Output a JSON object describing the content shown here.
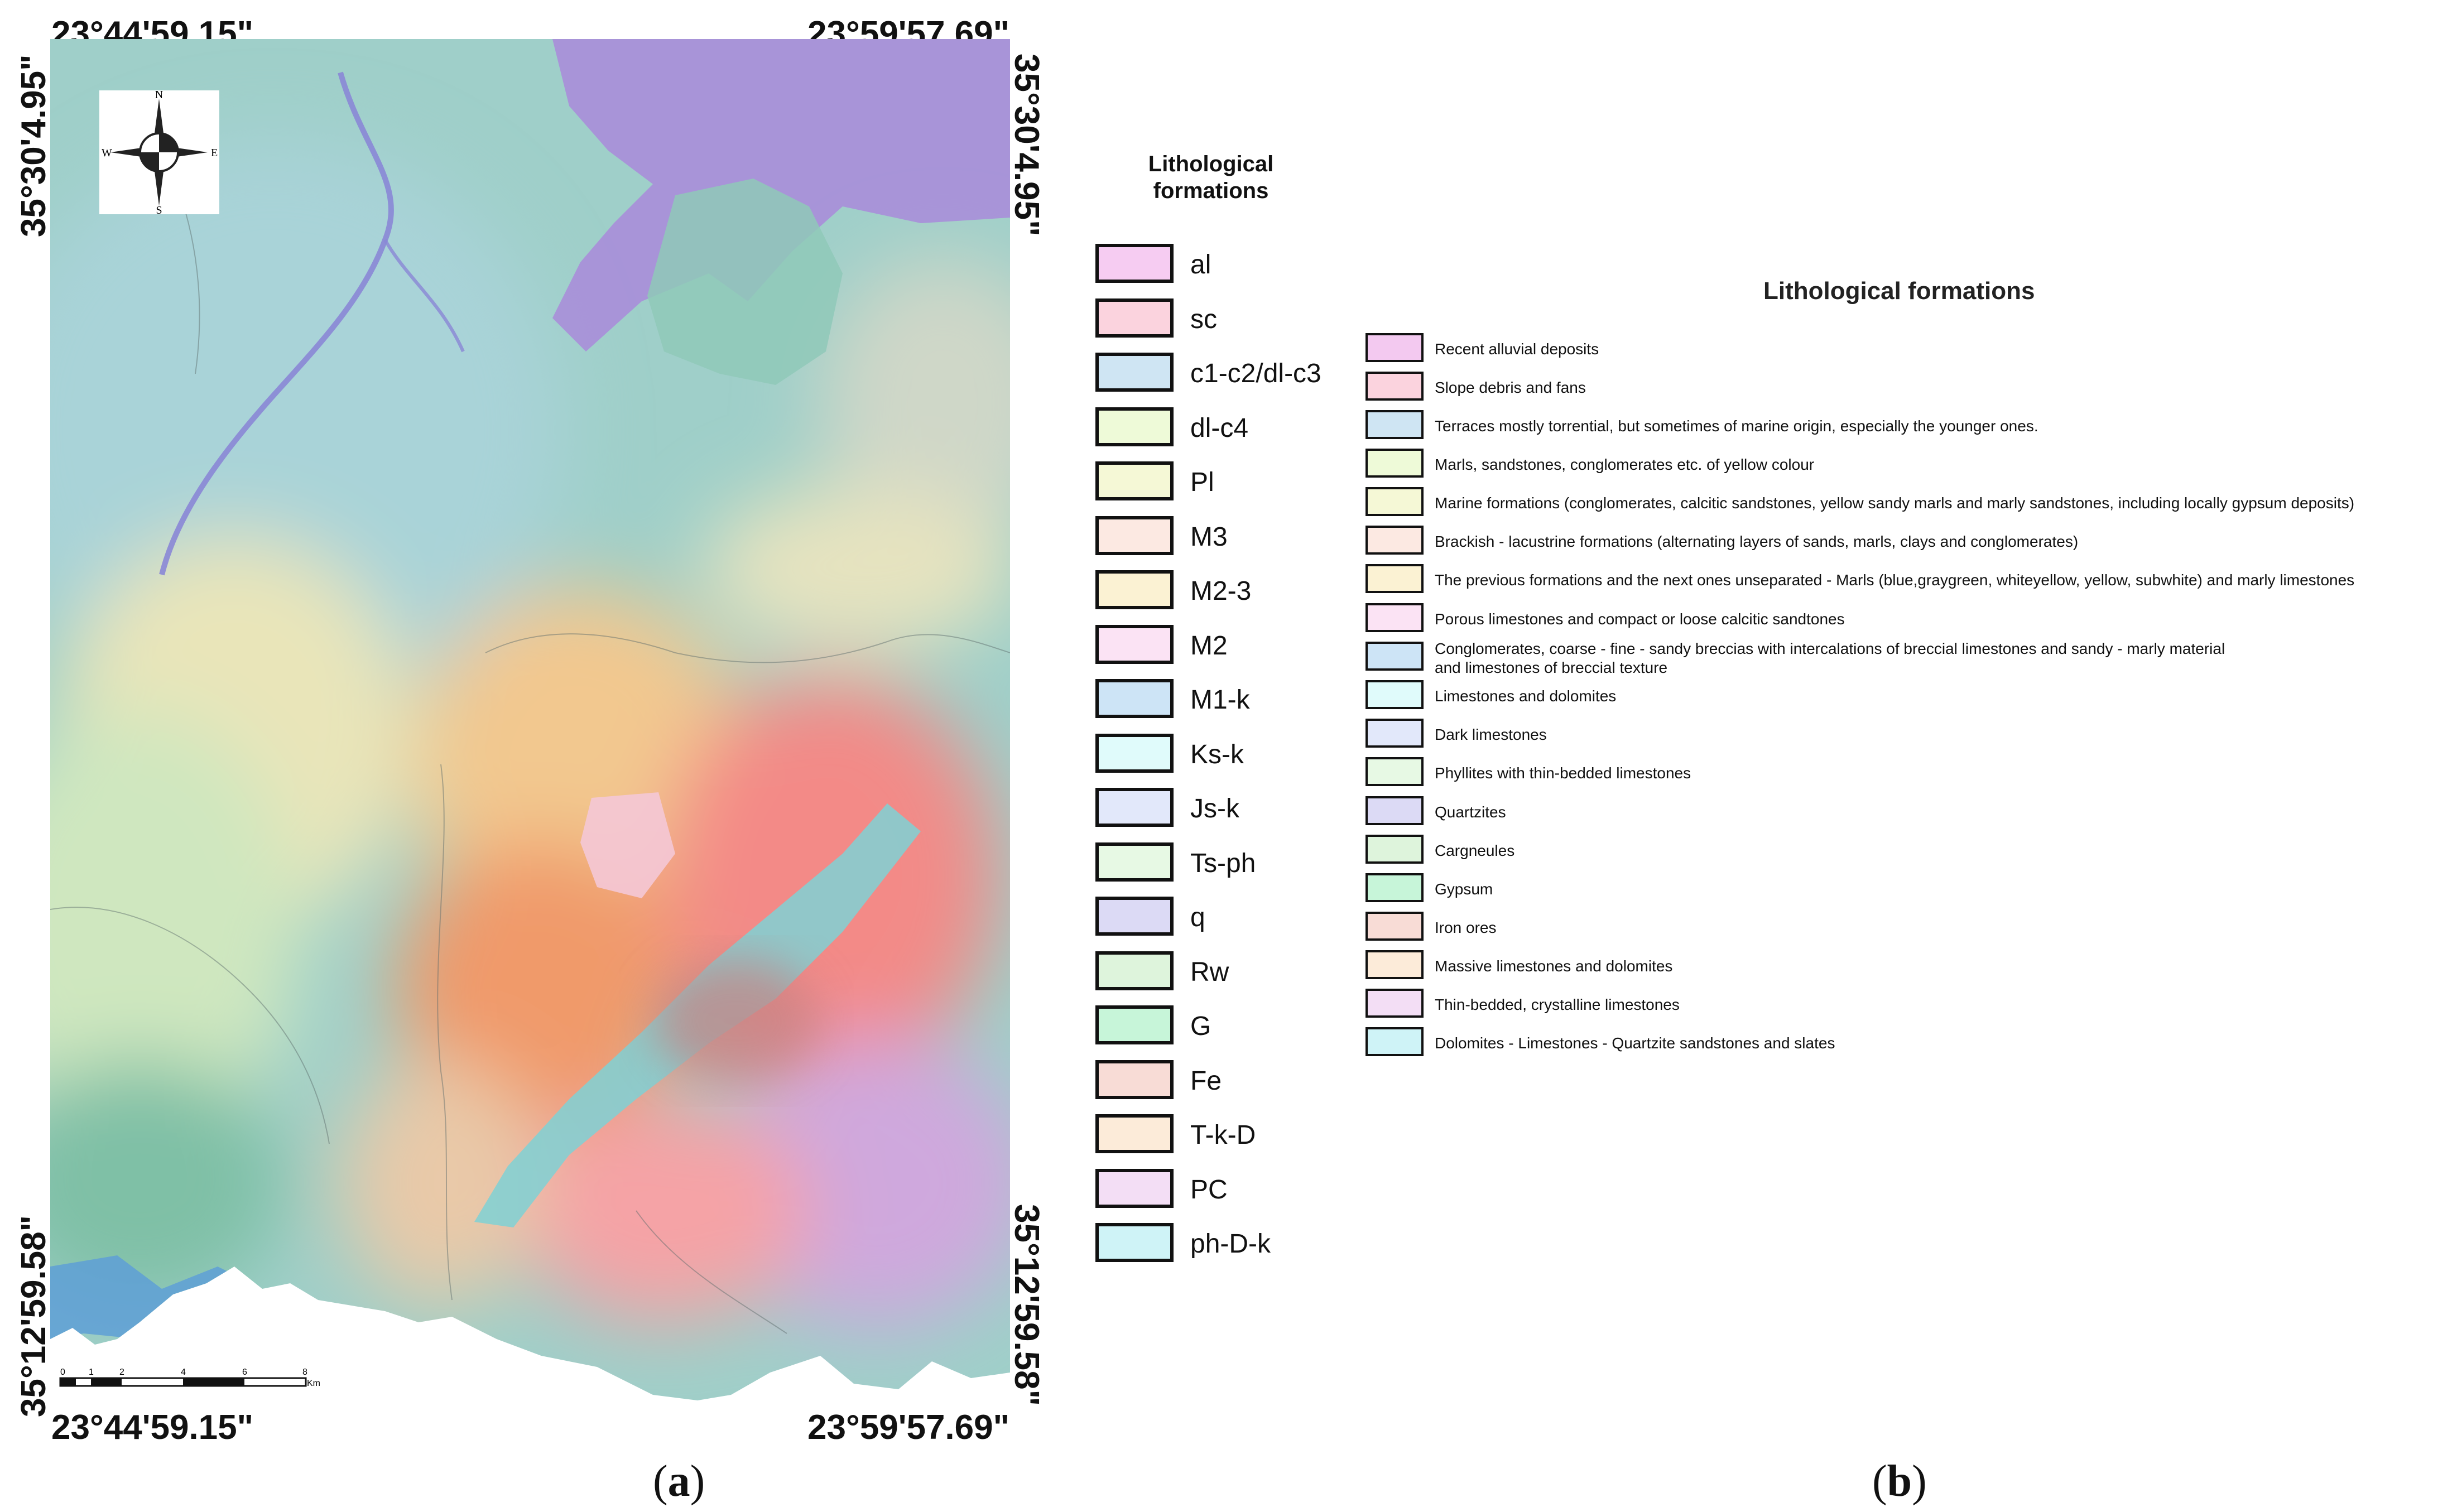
{
  "coordinates": {
    "top_left": "23°44'59.15\"",
    "top_right": "23°59'57.69\"",
    "bottom_left": "23°44'59.15\"",
    "bottom_right": "23°59'57.69\"",
    "left_upper": "35°30'4.95\"",
    "left_lower": "35°12'59.58\"",
    "right_upper": "35°30'4.95\"",
    "right_lower": "35°12'59.58\""
  },
  "compass": {
    "n": "N",
    "s": "S",
    "e": "E",
    "w": "W",
    "icon": "compass-rose-icon"
  },
  "scalebar": {
    "ticks": [
      "0",
      "1",
      "2",
      "4",
      "6",
      "8"
    ],
    "unit": "Km"
  },
  "captions": {
    "a": "a",
    "b": "b"
  },
  "legend_a": {
    "title_line1": "Lithological",
    "title_line2": "formations",
    "items": [
      {
        "label": "al",
        "color": "#f6ccf2"
      },
      {
        "label": "sc",
        "color": "#fbd3de"
      },
      {
        "label": "c1-c2/dl-c3",
        "color": "#cfe5f3"
      },
      {
        "label": "dl-c4",
        "color": "#eefad8"
      },
      {
        "label": "Pl",
        "color": "#f5f8d6"
      },
      {
        "label": "M3",
        "color": "#fce9e2"
      },
      {
        "label": "M2-3",
        "color": "#fbf2d3"
      },
      {
        "label": "M2",
        "color": "#fbe3f4"
      },
      {
        "label": "M1-k",
        "color": "#cde4f6"
      },
      {
        "label": "Ks-k",
        "color": "#e0fbfb"
      },
      {
        "label": "Js-k",
        "color": "#e2e8fa"
      },
      {
        "label": "Ts-ph",
        "color": "#e7f9e4"
      },
      {
        "label": "q",
        "color": "#dcdaf5"
      },
      {
        "label": "Rw",
        "color": "#def4dc"
      },
      {
        "label": "G",
        "color": "#c7f5d9"
      },
      {
        "label": "Fe",
        "color": "#f8dcd6"
      },
      {
        "label": "T-k-D",
        "color": "#fcebd9"
      },
      {
        "label": "PC",
        "color": "#f3def5"
      },
      {
        "label": "ph-D-k",
        "color": "#cff3f7"
      }
    ]
  },
  "legend_b": {
    "title": "Lithological formations",
    "items": [
      {
        "lines": [
          "Recent alluvial deposits"
        ],
        "color": "#f3c9f0"
      },
      {
        "lines": [
          "Slope debris and fans"
        ],
        "color": "#fbd3de"
      },
      {
        "lines": [
          "Terraces mostly torrential, but sometimes of marine origin, especially the younger ones."
        ],
        "color": "#cfe5f3"
      },
      {
        "lines": [
          "Marls, sandstones, conglomerates etc. of yellow colour"
        ],
        "color": "#eefad8"
      },
      {
        "lines": [
          "Marine formations (conglomerates, calcitic sandstones, yellow sandy marls and marly sandstones, including locally gypsum deposits)"
        ],
        "color": "#f5f8d6"
      },
      {
        "lines": [
          "Brackish - lacustrine formations (alternating layers of sands, marls, clays and conglomerates)"
        ],
        "color": "#fce9e2"
      },
      {
        "lines": [
          "The previous formations and the next ones unseparated - Marls (blue,graygreen, whiteyellow, yellow, subwhite) and marly limestones"
        ],
        "color": "#fbf2d3"
      },
      {
        "lines": [
          "Porous limestones and compact or loose calcitic sandtones"
        ],
        "color": "#fbe3f4"
      },
      {
        "lines": [
          "Conglomerates, coarse - fine - sandy breccias with intercalations of breccial limestones and sandy - marly material",
          "and limestones of breccial texture"
        ],
        "color": "#cde4f6"
      },
      {
        "lines": [
          "Limestones and dolomites"
        ],
        "color": "#e0fbfb"
      },
      {
        "lines": [
          "Dark limestones"
        ],
        "color": "#e2e8fa"
      },
      {
        "lines": [
          "Phyllites with thin-bedded limestones"
        ],
        "color": "#e7f9e4"
      },
      {
        "lines": [
          "Quartzites"
        ],
        "color": "#dcdaf5"
      },
      {
        "lines": [
          "Cargneules"
        ],
        "color": "#def4dc"
      },
      {
        "lines": [
          "Gypsum"
        ],
        "color": "#c7f5d9"
      },
      {
        "lines": [
          "Iron ores"
        ],
        "color": "#f8dcd6"
      },
      {
        "lines": [
          "Massive limestones and dolomites"
        ],
        "color": "#fcebd9"
      },
      {
        "lines": [
          "Thin-bedded, crystalline limestones"
        ],
        "color": "#f3def5"
      },
      {
        "lines": [
          "Dolomites - Limestones - Quartzite sandstones and slates"
        ],
        "color": "#cff3f7"
      }
    ]
  }
}
